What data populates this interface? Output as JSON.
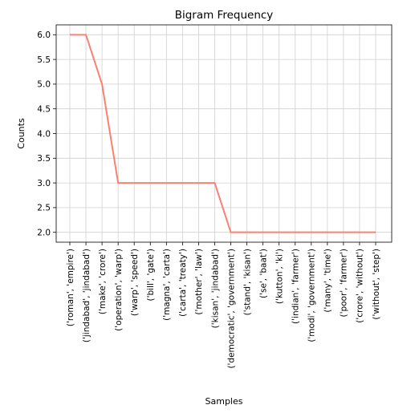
{
  "chart_data": {
    "type": "line",
    "title": "Bigram Frequency",
    "xlabel": "Samples",
    "ylabel": "Counts",
    "ylim": [
      1.8,
      6.2
    ],
    "yticks": [
      2.0,
      2.5,
      3.0,
      3.5,
      4.0,
      4.5,
      5.0,
      5.5,
      6.0
    ],
    "grid": true,
    "line_color": "#fa8072",
    "categories": [
      "('roman', 'empire')",
      "('jindabad', 'jindabad')",
      "('make', 'crore')",
      "('operation', 'warp')",
      "('warp', 'speed')",
      "('bill', 'gate')",
      "('magna', 'carta')",
      "('carta', 'treaty')",
      "('mother', 'law')",
      "('kisan', 'jindabad')",
      "('democratic', 'government')",
      "('stand', 'kisan')",
      "('se', 'baat')",
      "('kutton', 'ki')",
      "('indian', 'farmer')",
      "('modi', 'government')",
      "('many', 'time')",
      "('poor', 'farmer')",
      "('crore', 'without')",
      "('without', 'step')"
    ],
    "values": [
      6,
      6,
      5,
      3,
      3,
      3,
      3,
      3,
      3,
      3,
      2,
      2,
      2,
      2,
      2,
      2,
      2,
      2,
      2,
      2
    ]
  }
}
